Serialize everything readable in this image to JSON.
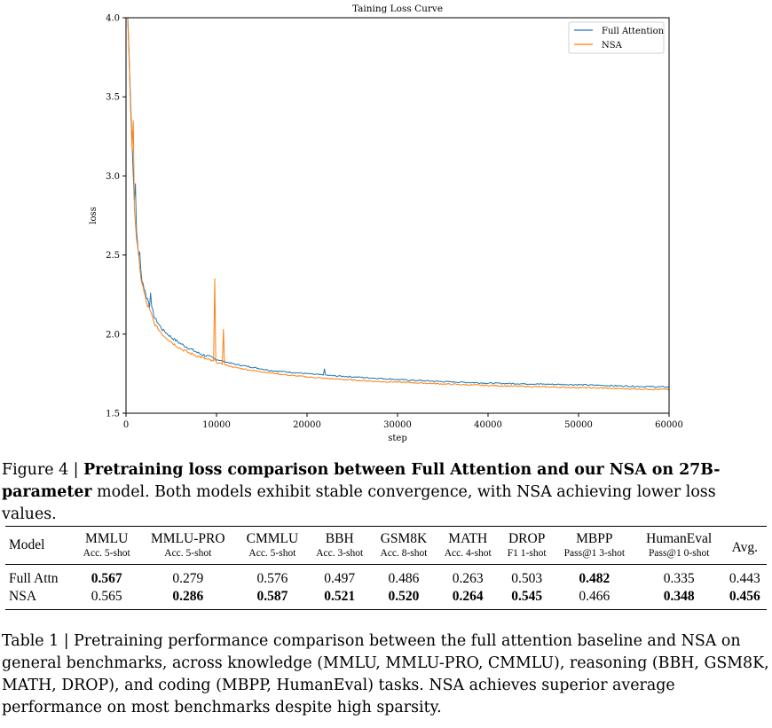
{
  "figure": {
    "chart_data": {
      "type": "line",
      "title": "Taining Loss Curve",
      "xlabel": "step",
      "ylabel": "loss",
      "xlim": [
        0,
        60000
      ],
      "ylim": [
        1.5,
        4.0
      ],
      "xticks": [
        0,
        10000,
        20000,
        30000,
        40000,
        50000,
        60000
      ],
      "yticks": [
        1.5,
        2.0,
        2.5,
        3.0,
        3.5,
        4.0
      ],
      "xtick_labels": [
        "0",
        "10000",
        "20000",
        "30000",
        "40000",
        "50000",
        "60000"
      ],
      "ytick_labels": [
        "1.5",
        "2.0",
        "2.5",
        "3.0",
        "3.5",
        "4.0"
      ],
      "legend_position": "top-right",
      "series": [
        {
          "name": "Full Attention",
          "color": "#1f77b4",
          "x": [
            200,
            500,
            800,
            1000,
            1200,
            1500,
            1800,
            2200,
            2700,
            3200,
            4000,
            5000,
            6000,
            7000,
            8000,
            9000,
            10000,
            12000,
            14000,
            16000,
            18000,
            20000,
            22000,
            25000,
            28000,
            31000,
            35000,
            40000,
            45000,
            50000,
            55000,
            60000
          ],
          "values": [
            4.0,
            3.5,
            3.0,
            2.78,
            2.62,
            2.45,
            2.34,
            2.25,
            2.17,
            2.1,
            2.03,
            1.98,
            1.94,
            1.91,
            1.88,
            1.86,
            1.84,
            1.81,
            1.79,
            1.77,
            1.76,
            1.75,
            1.74,
            1.73,
            1.72,
            1.71,
            1.7,
            1.69,
            1.685,
            1.68,
            1.672,
            1.665
          ],
          "spikes": [
            [
              1000,
              2.95
            ],
            [
              1500,
              2.52
            ],
            [
              2700,
              2.26
            ],
            [
              5300,
              2.07
            ],
            [
              21900,
              1.78
            ]
          ]
        },
        {
          "name": "NSA",
          "color": "#ff7f0e",
          "x": [
            200,
            500,
            800,
            1000,
            1200,
            1500,
            1800,
            2200,
            2700,
            3200,
            4000,
            5000,
            6000,
            7000,
            8000,
            9000,
            10000,
            12000,
            14000,
            16000,
            18000,
            20000,
            22000,
            25000,
            28000,
            31000,
            35000,
            40000,
            45000,
            50000,
            55000,
            60000
          ],
          "values": [
            4.0,
            3.45,
            2.95,
            2.74,
            2.58,
            2.42,
            2.31,
            2.21,
            2.13,
            2.06,
            2.0,
            1.95,
            1.91,
            1.88,
            1.86,
            1.84,
            1.82,
            1.79,
            1.77,
            1.755,
            1.74,
            1.73,
            1.72,
            1.71,
            1.7,
            1.695,
            1.685,
            1.675,
            1.668,
            1.662,
            1.655,
            1.65
          ],
          "spikes": [
            [
              800,
              3.35
            ],
            [
              9800,
              2.35
            ],
            [
              10800,
              2.03
            ]
          ]
        }
      ]
    }
  },
  "figure_caption": {
    "label": "Figure 4 | ",
    "bold_text": "Pretraining loss comparison between Full Attention and our NSA on 27B-parameter",
    "rest": " model. Both models exhibit stable convergence, with NSA achieving lower loss values."
  },
  "table": {
    "model_header": "Model",
    "avg_header": "Avg.",
    "columns": [
      {
        "name": "MMLU",
        "metric": "Acc. 5-shot"
      },
      {
        "name": "MMLU-PRO",
        "metric": "Acc. 5-shot"
      },
      {
        "name": "CMMLU",
        "metric": "Acc. 5-shot"
      },
      {
        "name": "BBH",
        "metric": "Acc. 3-shot"
      },
      {
        "name": "GSM8K",
        "metric": "Acc. 8-shot"
      },
      {
        "name": "MATH",
        "metric": "Acc. 4-shot"
      },
      {
        "name": "DROP",
        "metric": "F1 1-shot"
      },
      {
        "name": "MBPP",
        "metric": "Pass@1 3-shot"
      },
      {
        "name": "HumanEval",
        "metric": "Pass@1 0-shot"
      }
    ],
    "rows": [
      {
        "model": "Full Attn",
        "values": [
          "0.567",
          "0.279",
          "0.576",
          "0.497",
          "0.486",
          "0.263",
          "0.503",
          "0.482",
          "0.335",
          "0.443"
        ],
        "bold": [
          true,
          false,
          false,
          false,
          false,
          false,
          false,
          true,
          false,
          false
        ]
      },
      {
        "model": "NSA",
        "values": [
          "0.565",
          "0.286",
          "0.587",
          "0.521",
          "0.520",
          "0.264",
          "0.545",
          "0.466",
          "0.348",
          "0.456"
        ],
        "bold": [
          false,
          true,
          true,
          true,
          true,
          true,
          true,
          false,
          true,
          true
        ]
      }
    ]
  },
  "table_caption": {
    "text": "Table 1 | Pretraining performance comparison between the full attention baseline and NSA on general benchmarks, across knowledge (MMLU, MMLU-PRO, CMMLU), reasoning (BBH, GSM8K, MATH, DROP), and coding (MBPP, HumanEval) tasks. NSA achieves superior average performance on most benchmarks despite high sparsity."
  }
}
